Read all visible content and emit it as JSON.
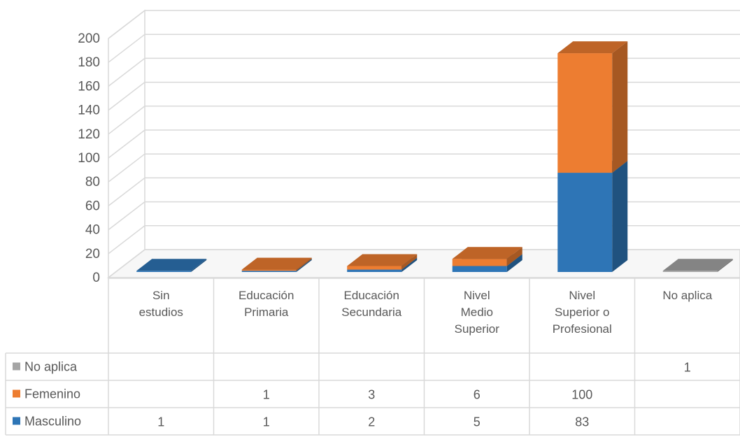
{
  "chart_data": {
    "type": "bar",
    "stacked": true,
    "three_d": true,
    "ylim": [
      0,
      200
    ],
    "yticks": [
      0,
      20,
      40,
      60,
      80,
      100,
      120,
      140,
      160,
      180,
      200
    ],
    "categories": [
      [
        "Sin",
        "estudios"
      ],
      [
        "Educación",
        "Primaria"
      ],
      [
        "Educación",
        "Secundaria"
      ],
      [
        "Nivel",
        "Medio",
        "Superior"
      ],
      [
        "Nivel",
        "Superior o",
        "Profesional"
      ],
      [
        "No aplica"
      ]
    ],
    "series": [
      {
        "name": "Masculino",
        "color": "#2e75b6",
        "values": [
          1,
          1,
          2,
          5,
          83,
          null
        ]
      },
      {
        "name": "Femenino",
        "color": "#ed7d31",
        "values": [
          null,
          1,
          3,
          6,
          100,
          null
        ]
      },
      {
        "name": "No aplica",
        "color": "#a5a5a5",
        "values": [
          null,
          null,
          null,
          null,
          null,
          1
        ]
      }
    ],
    "data_table": true,
    "grid": true
  }
}
